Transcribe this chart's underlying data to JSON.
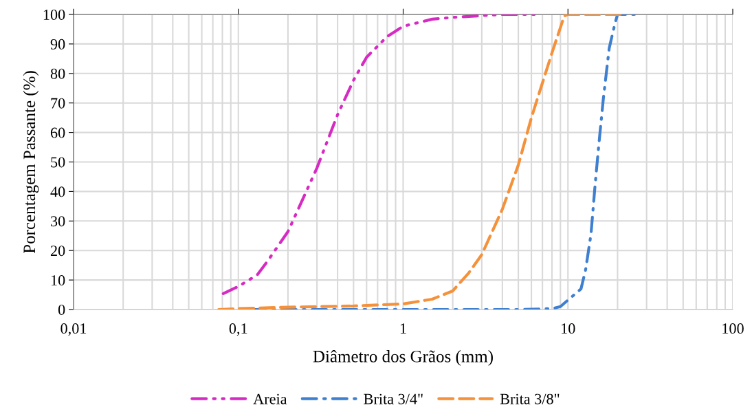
{
  "chart_data": {
    "type": "line",
    "xlabel": "Diâmetro dos Grãos (mm)",
    "ylabel": "Porcentagem Passante (%)",
    "log": "x",
    "xlim": [
      0.01,
      100
    ],
    "xticks": [
      {
        "value": 0.01,
        "label": "0,01"
      },
      {
        "value": 0.1,
        "label": "0,1"
      },
      1,
      10,
      100
    ],
    "ylim": [
      0,
      100
    ],
    "yticks": [
      0,
      10,
      20,
      30,
      40,
      50,
      60,
      70,
      80,
      90,
      100
    ],
    "grid": true,
    "legend": "bottom",
    "series": [
      {
        "name": "Areia",
        "color": "#d62bc2",
        "line_style": "dashdotdot",
        "x": [
          0.081,
          0.1,
          0.13,
          0.15,
          0.2,
          0.3,
          0.4,
          0.5,
          0.6,
          0.8,
          1,
          1.5,
          2,
          4,
          6.3
        ],
        "values": [
          5.4,
          7.8,
          11.7,
          16.3,
          26.4,
          48,
          66,
          77.7,
          85.5,
          92.5,
          96,
          98.4,
          99,
          100,
          100
        ]
      },
      {
        "name": "Brita 3/4\"",
        "color": "#3f7fd0",
        "line_style": "dashdot",
        "x": [
          0.12,
          1,
          5,
          8,
          9,
          12,
          12.8,
          13.8,
          14.6,
          15.4,
          16.4,
          17.8,
          19.3,
          20,
          25.6
        ],
        "values": [
          0,
          0,
          0,
          0.3,
          1,
          7,
          13.5,
          25.6,
          42,
          56,
          71.5,
          88.6,
          97,
          100,
          100
        ]
      },
      {
        "name": "Brita 3/8\"",
        "color": "#f5913a",
        "line_style": "dashed",
        "x": [
          0.076,
          0.1,
          0.2,
          0.5,
          1,
          1.5,
          2,
          2.5,
          3,
          4,
          5,
          6,
          8,
          9.5,
          10,
          22
        ],
        "values": [
          0,
          0.3,
          0.8,
          1.2,
          1.9,
          3.5,
          6.3,
          12.4,
          18.6,
          34,
          49,
          65,
          87,
          99.5,
          100,
          100
        ]
      }
    ]
  }
}
